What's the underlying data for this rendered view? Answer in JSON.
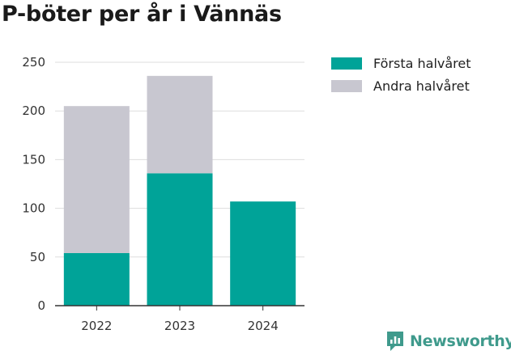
{
  "title": "P-böter per år i Vännäs",
  "brand": {
    "name": "Newsworthy",
    "icon": "newsworthy-logo-icon",
    "color": "#3f9a8c"
  },
  "chart_data": {
    "type": "bar",
    "stacked": true,
    "categories": [
      "2022",
      "2023",
      "2024"
    ],
    "series": [
      {
        "name": "Första halvåret",
        "color": "#00a398",
        "values": [
          54,
          136,
          107
        ]
      },
      {
        "name": "Andra halvåret",
        "color": "#c8c7d0",
        "values": [
          151,
          100,
          0
        ]
      }
    ],
    "ylim": [
      0,
      250
    ],
    "yticks": [
      0,
      50,
      100,
      150,
      200,
      250
    ],
    "grid": true,
    "legend_position": "right"
  }
}
